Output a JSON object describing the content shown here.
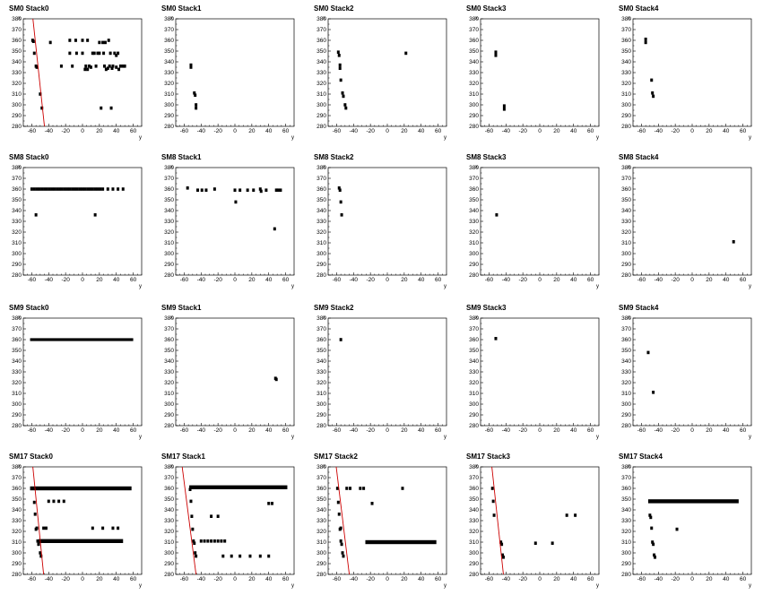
{
  "chart_data": [
    {
      "type": "scatter",
      "title": "SM0 Stack0",
      "xlabel": "y",
      "ylabel": "x",
      "xlim": [
        -70,
        70
      ],
      "ylim": [
        280,
        380
      ],
      "points": [
        [
          -59,
          360
        ],
        [
          -58,
          359
        ],
        [
          -57,
          348
        ],
        [
          -55,
          336
        ],
        [
          -54,
          335
        ],
        [
          -50,
          310
        ],
        [
          -48,
          297
        ],
        [
          -38,
          358
        ],
        [
          -25,
          336
        ],
        [
          -15,
          360
        ],
        [
          -15,
          348
        ],
        [
          -12,
          336
        ],
        [
          -8,
          360
        ],
        [
          -7,
          348
        ],
        [
          0,
          360
        ],
        [
          0,
          348
        ],
        [
          3,
          333
        ],
        [
          4,
          336
        ],
        [
          6,
          360
        ],
        [
          6,
          333
        ],
        [
          8,
          336
        ],
        [
          10,
          335
        ],
        [
          12,
          348
        ],
        [
          14,
          348
        ],
        [
          16,
          336
        ],
        [
          18,
          348
        ],
        [
          20,
          358
        ],
        [
          20,
          348
        ],
        [
          22,
          297
        ],
        [
          24,
          358
        ],
        [
          25,
          348
        ],
        [
          26,
          336
        ],
        [
          27,
          358
        ],
        [
          28,
          333
        ],
        [
          30,
          334
        ],
        [
          31,
          360
        ],
        [
          32,
          336
        ],
        [
          33,
          348
        ],
        [
          34,
          297
        ],
        [
          35,
          334
        ],
        [
          36,
          336
        ],
        [
          38,
          348
        ],
        [
          40,
          346
        ],
        [
          40,
          335
        ],
        [
          42,
          348
        ],
        [
          43,
          333
        ],
        [
          45,
          336
        ],
        [
          48,
          336
        ],
        [
          50,
          336
        ]
      ],
      "fit_line": [
        [
          -60,
          390
        ],
        [
          -45,
          280
        ]
      ]
    },
    {
      "type": "scatter",
      "title": "SM0 Stack1",
      "xlabel": "y",
      "ylabel": "x",
      "xlim": [
        -70,
        70
      ],
      "ylim": [
        280,
        380
      ],
      "points": [
        [
          -52,
          337
        ],
        [
          -52,
          335
        ],
        [
          -48,
          311
        ],
        [
          -47,
          309
        ],
        [
          -46,
          300
        ],
        [
          -46,
          297
        ]
      ]
    },
    {
      "type": "scatter",
      "title": "SM0 Stack2",
      "xlabel": "y",
      "ylabel": "x",
      "xlim": [
        -70,
        70
      ],
      "ylim": [
        280,
        380
      ],
      "points": [
        [
          -58,
          349
        ],
        [
          -57,
          346
        ],
        [
          -56,
          337
        ],
        [
          -56,
          334
        ],
        [
          -55,
          323
        ],
        [
          -53,
          311
        ],
        [
          -52,
          308
        ],
        [
          -50,
          300
        ],
        [
          -49,
          297
        ],
        [
          22,
          348
        ]
      ]
    },
    {
      "type": "scatter",
      "title": "SM0 Stack3",
      "xlabel": "y",
      "ylabel": "x",
      "xlim": [
        -70,
        70
      ],
      "ylim": [
        280,
        380
      ],
      "points": [
        [
          -52,
          349
        ],
        [
          -52,
          346
        ],
        [
          -42,
          299
        ],
        [
          -42,
          296
        ]
      ]
    },
    {
      "type": "scatter",
      "title": "SM0 Stack4",
      "xlabel": "y",
      "ylabel": "x",
      "xlim": [
        -70,
        70
      ],
      "ylim": [
        280,
        380
      ],
      "points": [
        [
          -55,
          361
        ],
        [
          -55,
          358
        ],
        [
          -48,
          323
        ],
        [
          -47,
          311
        ],
        [
          -46,
          308
        ]
      ]
    },
    {
      "type": "scatter",
      "title": "SM8 Stack0",
      "xlabel": "y",
      "ylabel": "x",
      "xlim": [
        -70,
        70
      ],
      "ylim": [
        280,
        380
      ],
      "points": [
        [
          -60,
          360
        ],
        [
          -57,
          360
        ],
        [
          -55,
          336
        ],
        [
          -54,
          360
        ],
        [
          -51,
          360
        ],
        [
          -48,
          360
        ],
        [
          -45,
          360
        ],
        [
          -42,
          360
        ],
        [
          -39,
          360
        ],
        [
          -36,
          360
        ],
        [
          -33,
          360
        ],
        [
          -30,
          360
        ],
        [
          -27,
          360
        ],
        [
          -24,
          360
        ],
        [
          -21,
          360
        ],
        [
          -18,
          360
        ],
        [
          -15,
          360
        ],
        [
          -12,
          360
        ],
        [
          -9,
          360
        ],
        [
          -6,
          360
        ],
        [
          -3,
          360
        ],
        [
          0,
          360
        ],
        [
          3,
          360
        ],
        [
          6,
          360
        ],
        [
          9,
          360
        ],
        [
          12,
          360
        ],
        [
          15,
          360
        ],
        [
          15,
          336
        ],
        [
          18,
          360
        ],
        [
          21,
          360
        ],
        [
          24,
          360
        ],
        [
          30,
          360
        ],
        [
          36,
          360
        ],
        [
          42,
          360
        ],
        [
          48,
          360
        ]
      ]
    },
    {
      "type": "scatter",
      "title": "SM8 Stack1",
      "xlabel": "y",
      "ylabel": "x",
      "xlim": [
        -70,
        70
      ],
      "ylim": [
        280,
        380
      ],
      "points": [
        [
          -56,
          361
        ],
        [
          -44,
          359
        ],
        [
          -39,
          359
        ],
        [
          -34,
          359
        ],
        [
          -24,
          360
        ],
        [
          0,
          359
        ],
        [
          1,
          348
        ],
        [
          6,
          359
        ],
        [
          15,
          359
        ],
        [
          22,
          359
        ],
        [
          30,
          360
        ],
        [
          31,
          358
        ],
        [
          37,
          359
        ],
        [
          47,
          323
        ],
        [
          49,
          359
        ],
        [
          51,
          359
        ],
        [
          54,
          359
        ]
      ]
    },
    {
      "type": "scatter",
      "title": "SM8 Stack2",
      "xlabel": "y",
      "ylabel": "x",
      "xlim": [
        -70,
        70
      ],
      "ylim": [
        280,
        380
      ],
      "points": [
        [
          -57,
          361
        ],
        [
          -56,
          359
        ],
        [
          -55,
          348
        ],
        [
          -54,
          336
        ]
      ]
    },
    {
      "type": "scatter",
      "title": "SM8 Stack3",
      "xlabel": "y",
      "ylabel": "x",
      "xlim": [
        -70,
        70
      ],
      "ylim": [
        280,
        380
      ],
      "points": [
        [
          -51,
          336
        ]
      ]
    },
    {
      "type": "scatter",
      "title": "SM8 Stack4",
      "xlabel": "y",
      "ylabel": "x",
      "xlim": [
        -70,
        70
      ],
      "ylim": [
        280,
        380
      ],
      "points": [
        [
          49,
          311
        ]
      ]
    },
    {
      "type": "scatter",
      "title": "SM9 Stack0",
      "xlabel": "y",
      "ylabel": "x",
      "xlim": [
        -70,
        70
      ],
      "ylim": [
        280,
        380
      ],
      "hline": {
        "x_from": -62,
        "x_to": 60,
        "y": 360
      }
    },
    {
      "type": "scatter",
      "title": "SM9 Stack1",
      "xlabel": "y",
      "ylabel": "x",
      "xlim": [
        -70,
        70
      ],
      "ylim": [
        280,
        380
      ],
      "points": [
        [
          48,
          324
        ],
        [
          49,
          323
        ]
      ]
    },
    {
      "type": "scatter",
      "title": "SM9 Stack2",
      "xlabel": "y",
      "ylabel": "x",
      "xlim": [
        -70,
        70
      ],
      "ylim": [
        280,
        380
      ],
      "points": [
        [
          -55,
          360
        ]
      ]
    },
    {
      "type": "scatter",
      "title": "SM9 Stack3",
      "xlabel": "y",
      "ylabel": "x",
      "xlim": [
        -70,
        70
      ],
      "ylim": [
        280,
        380
      ],
      "points": [
        [
          -52,
          361
        ]
      ]
    },
    {
      "type": "scatter",
      "title": "SM9 Stack4",
      "xlabel": "y",
      "ylabel": "x",
      "xlim": [
        -70,
        70
      ],
      "ylim": [
        280,
        380
      ],
      "points": [
        [
          -52,
          348
        ],
        [
          -46,
          311
        ]
      ]
    },
    {
      "type": "scatter",
      "title": "SM17 Stack0",
      "xlabel": "y",
      "ylabel": "x",
      "xlim": [
        -70,
        70
      ],
      "ylim": [
        280,
        380
      ],
      "hbands": [
        {
          "x_from": -62,
          "x_to": 58,
          "y": 360
        },
        {
          "x_from": -52,
          "x_to": 48,
          "y": 311
        }
      ],
      "points": [
        [
          -58,
          360
        ],
        [
          -57,
          347
        ],
        [
          -56,
          336
        ],
        [
          -55,
          322
        ],
        [
          -54,
          323
        ],
        [
          -53,
          311
        ],
        [
          -52,
          308
        ],
        [
          -50,
          300
        ],
        [
          -49,
          297
        ],
        [
          -46,
          323
        ],
        [
          -43,
          323
        ],
        [
          -40,
          348
        ],
        [
          -34,
          348
        ],
        [
          -28,
          348
        ],
        [
          -22,
          348
        ],
        [
          12,
          323
        ],
        [
          24,
          323
        ],
        [
          36,
          323
        ],
        [
          42,
          323
        ]
      ],
      "fit_line": [
        [
          -60,
          390
        ],
        [
          -46,
          280
        ]
      ]
    },
    {
      "type": "scatter",
      "title": "SM17 Stack1",
      "xlabel": "y",
      "ylabel": "x",
      "xlim": [
        -70,
        70
      ],
      "ylim": [
        280,
        380
      ],
      "hbands": [
        {
          "x_from": -54,
          "x_to": 62,
          "y": 361
        }
      ],
      "points": [
        [
          -53,
          359
        ],
        [
          -52,
          348
        ],
        [
          -51,
          334
        ],
        [
          -50,
          322
        ],
        [
          -49,
          311
        ],
        [
          -48,
          309
        ],
        [
          -47,
          300
        ],
        [
          -46,
          297
        ],
        [
          -40,
          311
        ],
        [
          -36,
          311
        ],
        [
          -32,
          311
        ],
        [
          -28,
          311
        ],
        [
          -24,
          311
        ],
        [
          -20,
          311
        ],
        [
          -16,
          311
        ],
        [
          -12,
          311
        ],
        [
          -28,
          334
        ],
        [
          -20,
          334
        ],
        [
          -14,
          297
        ],
        [
          -4,
          297
        ],
        [
          6,
          297
        ],
        [
          18,
          297
        ],
        [
          30,
          297
        ],
        [
          40,
          346
        ],
        [
          44,
          346
        ],
        [
          40,
          297
        ]
      ],
      "fit_line": [
        [
          -64,
          390
        ],
        [
          -46,
          280
        ]
      ]
    },
    {
      "type": "scatter",
      "title": "SM17 Stack2",
      "xlabel": "y",
      "ylabel": "x",
      "xlim": [
        -70,
        70
      ],
      "ylim": [
        280,
        380
      ],
      "hbands": [
        {
          "x_from": -26,
          "x_to": 58,
          "y": 310
        }
      ],
      "points": [
        [
          -59,
          360
        ],
        [
          -58,
          347
        ],
        [
          -57,
          336
        ],
        [
          -56,
          322
        ],
        [
          -55,
          323
        ],
        [
          -55,
          311
        ],
        [
          -54,
          308
        ],
        [
          -53,
          300
        ],
        [
          -52,
          297
        ],
        [
          -48,
          360
        ],
        [
          -44,
          360
        ],
        [
          -32,
          360
        ],
        [
          -28,
          360
        ],
        [
          -18,
          346
        ],
        [
          18,
          360
        ]
      ],
      "fit_line": [
        [
          -62,
          390
        ],
        [
          -45,
          280
        ]
      ]
    },
    {
      "type": "scatter",
      "title": "SM17 Stack3",
      "xlabel": "y",
      "ylabel": "x",
      "xlim": [
        -70,
        70
      ],
      "ylim": [
        280,
        380
      ],
      "points": [
        [
          -56,
          360
        ],
        [
          -55,
          348
        ],
        [
          -54,
          335
        ],
        [
          -46,
          310
        ],
        [
          -45,
          308
        ],
        [
          -44,
          298
        ],
        [
          -43,
          296
        ],
        [
          -5,
          309
        ],
        [
          15,
          309
        ],
        [
          32,
          335
        ],
        [
          42,
          335
        ]
      ],
      "fit_line": [
        [
          -58,
          390
        ],
        [
          -43,
          280
        ]
      ]
    },
    {
      "type": "scatter",
      "title": "SM17 Stack4",
      "xlabel": "y",
      "ylabel": "x",
      "xlim": [
        -70,
        70
      ],
      "ylim": [
        280,
        380
      ],
      "hbands": [
        {
          "x_from": -52,
          "x_to": 55,
          "y": 348
        }
      ],
      "points": [
        [
          -50,
          335
        ],
        [
          -49,
          333
        ],
        [
          -48,
          323
        ],
        [
          -47,
          310
        ],
        [
          -46,
          308
        ],
        [
          -45,
          298
        ],
        [
          -44,
          296
        ],
        [
          -18,
          322
        ]
      ]
    }
  ]
}
